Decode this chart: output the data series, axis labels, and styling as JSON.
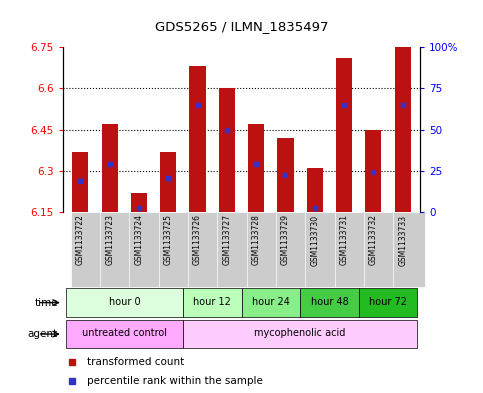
{
  "title": "GDS5265 / ILMN_1835497",
  "samples": [
    "GSM1133722",
    "GSM1133723",
    "GSM1133724",
    "GSM1133725",
    "GSM1133726",
    "GSM1133727",
    "GSM1133728",
    "GSM1133729",
    "GSM1133730",
    "GSM1133731",
    "GSM1133732",
    "GSM1133733"
  ],
  "bar_values": [
    6.37,
    6.47,
    6.22,
    6.37,
    6.68,
    6.6,
    6.47,
    6.42,
    6.31,
    6.71,
    6.45,
    6.75
  ],
  "blue_marker_values": [
    6.265,
    6.325,
    6.165,
    6.275,
    6.54,
    6.45,
    6.325,
    6.285,
    6.165,
    6.54,
    6.295,
    6.54
  ],
  "ymin": 6.15,
  "ymax": 6.75,
  "bar_color": "#BB1111",
  "blue_color": "#3333CC",
  "col_bg_color": "#CCCCCC",
  "time_groups": [
    {
      "label": "hour 0",
      "start": 0,
      "end": 4,
      "color": "#DDFFDD"
    },
    {
      "label": "hour 12",
      "start": 4,
      "end": 6,
      "color": "#BBFFBB"
    },
    {
      "label": "hour 24",
      "start": 6,
      "end": 8,
      "color": "#88EE88"
    },
    {
      "label": "hour 48",
      "start": 8,
      "end": 10,
      "color": "#44CC44"
    },
    {
      "label": "hour 72",
      "start": 10,
      "end": 12,
      "color": "#22BB22"
    }
  ],
  "agent_groups": [
    {
      "label": "untreated control",
      "start": 0,
      "end": 4,
      "color": "#FFAAFF"
    },
    {
      "label": "mycophenolic acid",
      "start": 4,
      "end": 12,
      "color": "#FFCCFF"
    }
  ],
  "left_yticks": [
    6.15,
    6.3,
    6.45,
    6.6,
    6.75
  ],
  "right_ytick_pcts": [
    0,
    25,
    50,
    75,
    100
  ],
  "grid_lines": [
    6.3,
    6.45,
    6.6
  ],
  "legend_items": [
    {
      "label": "transformed count",
      "color": "#BB1111",
      "marker": "s"
    },
    {
      "label": "percentile rank within the sample",
      "color": "#3333CC",
      "marker": "s"
    }
  ]
}
